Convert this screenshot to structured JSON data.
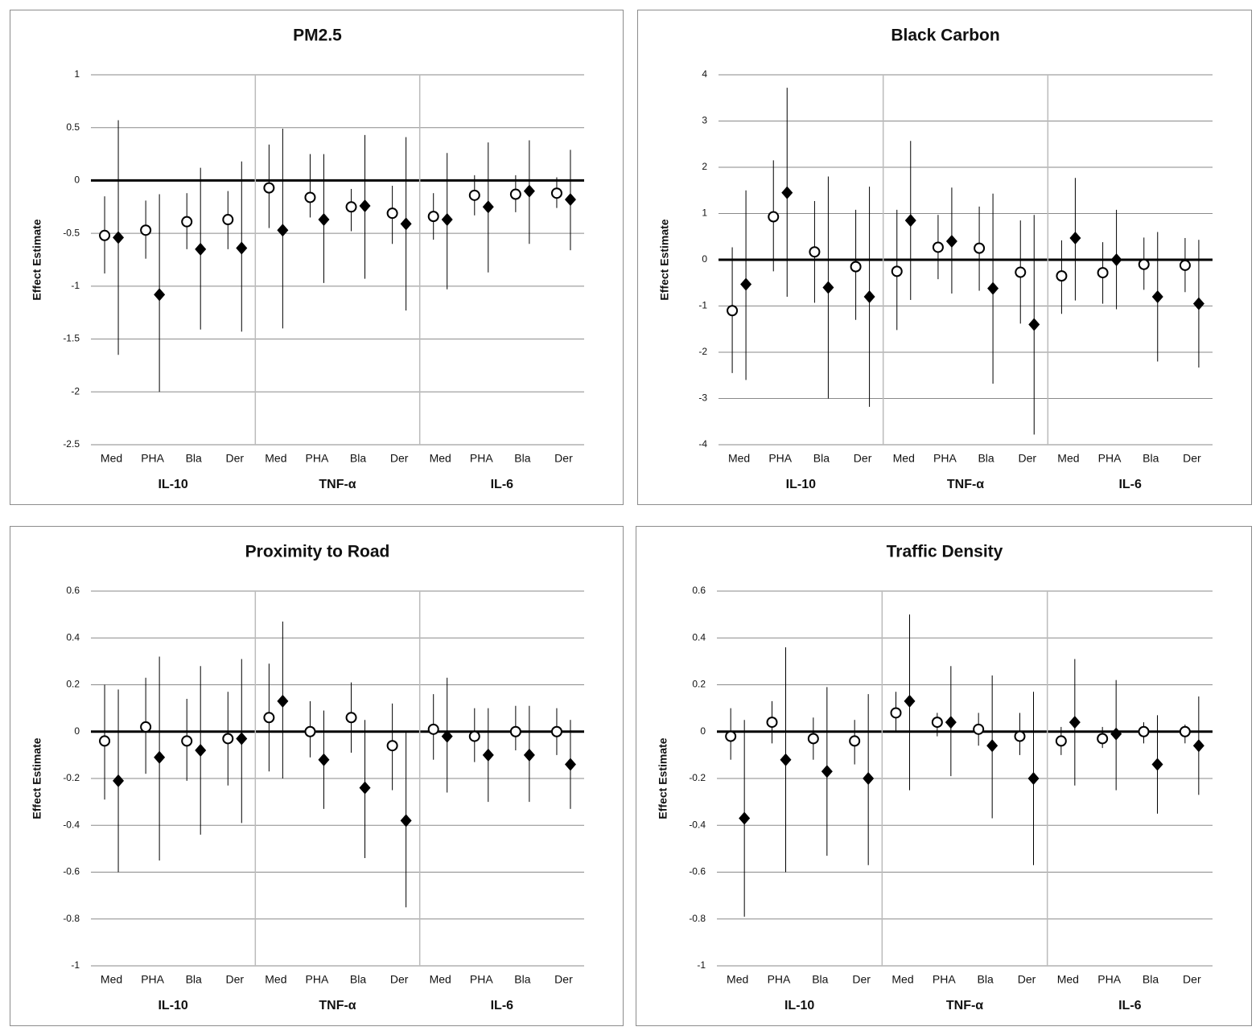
{
  "chart_data": [
    {
      "type": "errorbar",
      "title": "PM2.5",
      "ylabel": "Effect Estimate",
      "categories": [
        "Med",
        "PHA",
        "Bla",
        "Der",
        "Med",
        "PHA",
        "Bla",
        "Der",
        "Med",
        "PHA",
        "Bla",
        "Der"
      ],
      "groups": [
        "IL-10",
        "TNF-α",
        "IL-6"
      ],
      "ylim": [
        -2.5,
        1
      ],
      "yticks": [
        1,
        0.5,
        0,
        -0.5,
        -1,
        -1.5,
        -2,
        -2.5
      ],
      "grid": true,
      "series": [
        {
          "marker": "circle",
          "color": "#000000",
          "values": [
            -0.52,
            -0.47,
            -0.39,
            -0.37,
            -0.07,
            -0.16,
            -0.25,
            -0.31,
            -0.34,
            -0.14,
            -0.13,
            -0.12
          ],
          "lower": [
            -0.88,
            -0.74,
            -0.65,
            -0.65,
            -0.45,
            -0.35,
            -0.48,
            -0.6,
            -0.56,
            -0.33,
            -0.3,
            -0.26
          ],
          "upper": [
            -0.15,
            -0.19,
            -0.12,
            -0.1,
            0.34,
            0.25,
            -0.08,
            -0.05,
            -0.12,
            0.05,
            0.05,
            0.03
          ]
        },
        {
          "marker": "diamond",
          "color": "#000000",
          "values": [
            -0.54,
            -1.08,
            -0.65,
            -0.64,
            -0.47,
            -0.37,
            -0.24,
            -0.41,
            -0.37,
            -0.25,
            -0.1,
            -0.18
          ],
          "lower": [
            -1.65,
            -2.0,
            -1.41,
            -1.43,
            -1.4,
            -0.97,
            -0.93,
            -1.23,
            -1.03,
            -0.87,
            -0.6,
            -0.66
          ],
          "upper": [
            0.57,
            -0.13,
            0.12,
            0.18,
            0.49,
            0.25,
            0.43,
            0.41,
            0.26,
            0.36,
            0.38,
            0.29
          ]
        }
      ]
    },
    {
      "type": "errorbar",
      "title": "Black Carbon",
      "ylabel": "Effect Estimate",
      "categories": [
        "Med",
        "PHA",
        "Bla",
        "Der",
        "Med",
        "PHA",
        "Bla",
        "Der",
        "Med",
        "PHA",
        "Bla",
        "Der"
      ],
      "groups": [
        "IL-10",
        "TNF-α",
        "IL-6"
      ],
      "ylim": [
        -4,
        4
      ],
      "yticks": [
        4,
        3,
        2,
        1,
        0,
        -1,
        -2,
        -3,
        -4
      ],
      "grid": true,
      "series": [
        {
          "marker": "circle",
          "color": "#000000",
          "values": [
            -1.1,
            0.93,
            0.17,
            -0.15,
            -0.25,
            0.27,
            0.25,
            -0.27,
            -0.35,
            -0.28,
            -0.1,
            -0.12
          ],
          "lower": [
            -2.45,
            -0.25,
            -0.93,
            -1.3,
            -1.52,
            -0.42,
            -0.67,
            -1.38,
            -1.17,
            -0.95,
            -0.65,
            -0.7
          ],
          "upper": [
            0.27,
            2.15,
            1.27,
            1.08,
            1.08,
            0.97,
            1.15,
            0.85,
            0.42,
            0.38,
            0.48,
            0.47
          ]
        },
        {
          "marker": "diamond",
          "color": "#000000",
          "values": [
            -0.53,
            1.45,
            -0.6,
            -0.8,
            0.85,
            0.4,
            -0.62,
            -1.4,
            0.47,
            0.0,
            -0.8,
            -0.95
          ],
          "lower": [
            -2.6,
            -0.8,
            -3.0,
            -3.18,
            -0.87,
            -0.73,
            -2.68,
            -3.78,
            -0.88,
            -1.07,
            -2.2,
            -2.33
          ],
          "upper": [
            1.5,
            3.72,
            1.8,
            1.58,
            2.57,
            1.56,
            1.43,
            0.97,
            1.77,
            1.08,
            0.6,
            0.43
          ]
        }
      ]
    },
    {
      "type": "errorbar",
      "title": "Proximity to Road",
      "ylabel": "Effect Estimate",
      "categories": [
        "Med",
        "PHA",
        "Bla",
        "Der",
        "Med",
        "PHA",
        "Bla",
        "Der",
        "Med",
        "PHA",
        "Bla",
        "Der"
      ],
      "groups": [
        "IL-10",
        "TNF-α",
        "IL-6"
      ],
      "ylim": [
        -1,
        0.6
      ],
      "yticks": [
        0.6,
        0.4,
        0.2,
        0,
        -0.2,
        -0.4,
        -0.6,
        -0.8,
        -1
      ],
      "grid": true,
      "series": [
        {
          "marker": "circle",
          "color": "#000000",
          "values": [
            -0.04,
            0.02,
            -0.04,
            -0.03,
            0.06,
            0.0,
            0.06,
            -0.06,
            0.01,
            -0.02,
            0.0,
            0.0
          ],
          "lower": [
            -0.29,
            -0.18,
            -0.21,
            -0.23,
            -0.17,
            -0.11,
            -0.09,
            -0.25,
            -0.12,
            -0.13,
            -0.08,
            -0.1
          ],
          "upper": [
            0.2,
            0.23,
            0.14,
            0.17,
            0.29,
            0.13,
            0.21,
            0.12,
            0.16,
            0.1,
            0.11,
            0.1
          ]
        },
        {
          "marker": "diamond",
          "color": "#000000",
          "values": [
            -0.21,
            -0.11,
            -0.08,
            -0.03,
            0.13,
            -0.12,
            -0.24,
            -0.38,
            -0.02,
            -0.1,
            -0.1,
            -0.14
          ],
          "lower": [
            -0.6,
            -0.55,
            -0.44,
            -0.39,
            -0.2,
            -0.33,
            -0.54,
            -0.75,
            -0.26,
            -0.3,
            -0.3,
            -0.33
          ],
          "upper": [
            0.18,
            0.32,
            0.28,
            0.31,
            0.47,
            0.09,
            0.05,
            0.0,
            0.23,
            0.1,
            0.11,
            0.05
          ]
        }
      ]
    },
    {
      "type": "errorbar",
      "title": "Traffic Density",
      "ylabel": "Effect Estimate",
      "categories": [
        "Med",
        "PHA",
        "Bla",
        "Der",
        "Med",
        "PHA",
        "Bla",
        "Der",
        "Med",
        "PHA",
        "Bla",
        "Der"
      ],
      "groups": [
        "IL-10",
        "TNF-α",
        "IL-6"
      ],
      "ylim": [
        -1,
        0.6
      ],
      "yticks": [
        0.6,
        0.4,
        0.2,
        0,
        -0.2,
        -0.4,
        -0.6,
        -0.8,
        -1
      ],
      "grid": true,
      "series": [
        {
          "marker": "circle",
          "color": "#000000",
          "values": [
            -0.02,
            0.04,
            -0.03,
            -0.04,
            0.08,
            0.04,
            0.01,
            -0.02,
            -0.04,
            -0.03,
            0.0,
            0.0
          ],
          "lower": [
            -0.12,
            -0.05,
            -0.12,
            -0.14,
            0.0,
            -0.02,
            -0.06,
            -0.1,
            -0.1,
            -0.07,
            -0.05,
            -0.05
          ],
          "upper": [
            0.1,
            0.13,
            0.06,
            0.05,
            0.17,
            0.08,
            0.08,
            0.08,
            0.02,
            0.02,
            0.04,
            0.03
          ]
        },
        {
          "marker": "diamond",
          "color": "#000000",
          "values": [
            -0.37,
            -0.12,
            -0.17,
            -0.2,
            0.13,
            0.04,
            -0.06,
            -0.2,
            0.04,
            -0.01,
            -0.14,
            -0.06
          ],
          "lower": [
            -0.79,
            -0.6,
            -0.53,
            -0.57,
            -0.25,
            -0.19,
            -0.37,
            -0.57,
            -0.23,
            -0.25,
            -0.35,
            -0.27
          ],
          "upper": [
            0.05,
            0.36,
            0.19,
            0.16,
            0.5,
            0.28,
            0.24,
            0.17,
            0.31,
            0.22,
            0.07,
            0.15
          ]
        }
      ]
    }
  ]
}
